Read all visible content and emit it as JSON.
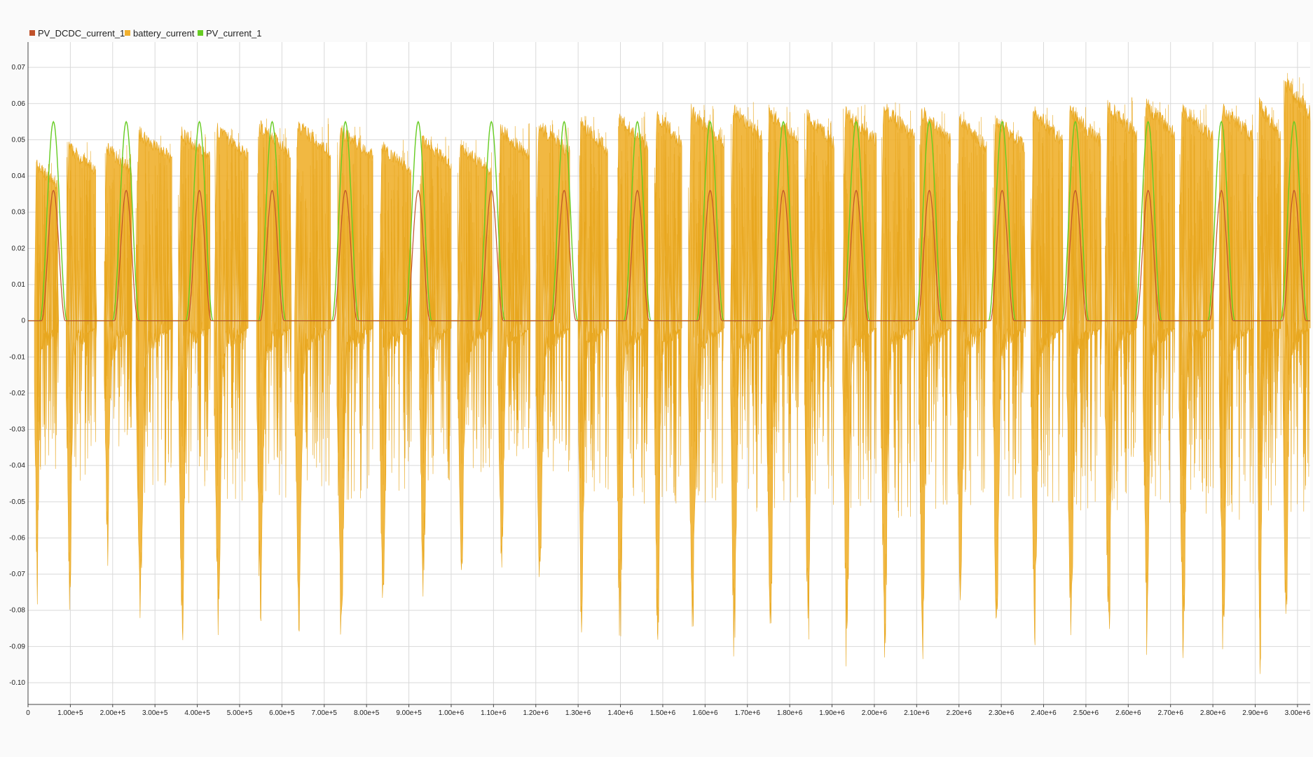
{
  "colors": {
    "background": "#fafafa",
    "plot_background": "#ffffff",
    "grid": "#d9d9d9",
    "axis": "#444444"
  },
  "chart_data": {
    "type": "line",
    "title": "",
    "xlabel": "",
    "ylabel": "",
    "grid": true,
    "legend_position": "top-left",
    "xlim": [
      0,
      3030000
    ],
    "ylim": [
      -0.106,
      0.077
    ],
    "x_ticks": [
      0,
      100000,
      200000,
      300000,
      400000,
      500000,
      600000,
      700000,
      800000,
      900000,
      1000000,
      1100000,
      1200000,
      1300000,
      1400000,
      1500000,
      1600000,
      1700000,
      1800000,
      1900000,
      2000000,
      2100000,
      2200000,
      2300000,
      2400000,
      2500000,
      2600000,
      2700000,
      2800000,
      2900000,
      3000000
    ],
    "x_tick_labels": [
      "0",
      "1.00e+5",
      "2.00e+5",
      "3.00e+5",
      "4.00e+5",
      "5.00e+5",
      "6.00e+5",
      "7.00e+5",
      "8.00e+5",
      "9.00e+5",
      "1.00e+6",
      "1.10e+6",
      "1.20e+6",
      "1.30e+6",
      "1.40e+6",
      "1.50e+6",
      "1.60e+6",
      "1.70e+6",
      "1.80e+6",
      "1.90e+6",
      "2.00e+6",
      "2.10e+6",
      "2.20e+6",
      "2.30e+6",
      "2.40e+6",
      "2.50e+6",
      "2.60e+6",
      "2.70e+6",
      "2.80e+6",
      "2.90e+6",
      "3.00e+6"
    ],
    "y_ticks": [
      0.07,
      0.06,
      0.05,
      0.04,
      0.03,
      0.02,
      0.01,
      0,
      -0.01,
      -0.02,
      -0.03,
      -0.04,
      -0.05,
      -0.06,
      -0.07,
      -0.08,
      -0.09,
      -0.1
    ],
    "y_tick_labels": [
      "0.07",
      "0.06",
      "0.05",
      "0.04",
      "0.03",
      "0.02",
      "0.01",
      "0",
      "-0.01",
      "-0.02",
      "-0.03",
      "-0.04",
      "-0.05",
      "-0.06",
      "-0.07",
      "-0.08",
      "-0.09",
      "-0.10"
    ],
    "series": [
      {
        "name": "PV_DCDC_current_1",
        "color": "#c0522b",
        "style": "daily bell curves, peak ~0.036, otherwise ~0",
        "day_starts": [
          0,
          172000,
          345000,
          517000,
          690000,
          862000,
          1035000,
          1207000,
          1380000,
          1552000,
          1725000,
          1897000,
          2070000,
          2242000,
          2415000,
          2587000,
          2760000,
          2932000
        ],
        "peak": 0.036
      },
      {
        "name": "battery_current",
        "color": "#f0b02e",
        "style": "oscillating envelope per half-day cycle",
        "cycles": [
          {
            "x0": 15000,
            "x1": 70000,
            "hi": 0.045,
            "lo": -0.069
          },
          {
            "x0": 90000,
            "x1": 160000,
            "hi": 0.05,
            "lo": -0.075
          },
          {
            "x0": 180000,
            "x1": 245000,
            "hi": 0.05,
            "lo": -0.06
          },
          {
            "x0": 255000,
            "x1": 340000,
            "hi": 0.054,
            "lo": -0.082
          },
          {
            "x0": 355000,
            "x1": 430000,
            "hi": 0.054,
            "lo": -0.085
          },
          {
            "x0": 440000,
            "x1": 520000,
            "hi": 0.055,
            "lo": -0.084
          },
          {
            "x0": 540000,
            "x1": 620000,
            "hi": 0.056,
            "lo": -0.082
          },
          {
            "x0": 630000,
            "x1": 715000,
            "hi": 0.056,
            "lo": -0.078
          },
          {
            "x0": 730000,
            "x1": 815000,
            "hi": 0.055,
            "lo": -0.086
          },
          {
            "x0": 830000,
            "x1": 905000,
            "hi": 0.05,
            "lo": -0.08
          },
          {
            "x0": 925000,
            "x1": 1000000,
            "hi": 0.052,
            "lo": -0.075
          },
          {
            "x0": 1015000,
            "x1": 1095000,
            "hi": 0.05,
            "lo": -0.07
          },
          {
            "x0": 1110000,
            "x1": 1185000,
            "hi": 0.055,
            "lo": -0.068
          },
          {
            "x0": 1200000,
            "x1": 1280000,
            "hi": 0.056,
            "lo": -0.072
          },
          {
            "x0": 1300000,
            "x1": 1370000,
            "hi": 0.057,
            "lo": -0.088
          },
          {
            "x0": 1390000,
            "x1": 1465000,
            "hi": 0.058,
            "lo": -0.086
          },
          {
            "x0": 1480000,
            "x1": 1545000,
            "hi": 0.059,
            "lo": -0.088
          },
          {
            "x0": 1560000,
            "x1": 1645000,
            "hi": 0.06,
            "lo": -0.087
          },
          {
            "x0": 1660000,
            "x1": 1735000,
            "hi": 0.061,
            "lo": -0.089
          },
          {
            "x0": 1745000,
            "x1": 1820000,
            "hi": 0.06,
            "lo": -0.091
          },
          {
            "x0": 1835000,
            "x1": 1905000,
            "hi": 0.059,
            "lo": -0.088
          },
          {
            "x0": 1925000,
            "x1": 2005000,
            "hi": 0.06,
            "lo": -0.091
          },
          {
            "x0": 2015000,
            "x1": 2095000,
            "hi": 0.061,
            "lo": -0.093
          },
          {
            "x0": 2105000,
            "x1": 2180000,
            "hi": 0.06,
            "lo": -0.09
          },
          {
            "x0": 2195000,
            "x1": 2265000,
            "hi": 0.058,
            "lo": -0.087
          },
          {
            "x0": 2280000,
            "x1": 2355000,
            "hi": 0.058,
            "lo": -0.085
          },
          {
            "x0": 2370000,
            "x1": 2445000,
            "hi": 0.06,
            "lo": -0.085
          },
          {
            "x0": 2455000,
            "x1": 2535000,
            "hi": 0.06,
            "lo": -0.088
          },
          {
            "x0": 2545000,
            "x1": 2620000,
            "hi": 0.062,
            "lo": -0.09
          },
          {
            "x0": 2635000,
            "x1": 2710000,
            "hi": 0.062,
            "lo": -0.087
          },
          {
            "x0": 2720000,
            "x1": 2800000,
            "hi": 0.061,
            "lo": -0.093
          },
          {
            "x0": 2815000,
            "x1": 2895000,
            "hi": 0.061,
            "lo": -0.092
          },
          {
            "x0": 2905000,
            "x1": 2960000,
            "hi": 0.062,
            "lo": -0.098
          },
          {
            "x0": 2965000,
            "x1": 3030000,
            "hi": 0.069,
            "lo": -0.09
          }
        ]
      },
      {
        "name": "PV_current_1",
        "color": "#66cc22",
        "style": "daily bell curves, peak ~0.055, otherwise ~0",
        "day_starts": [
          0,
          172000,
          345000,
          517000,
          690000,
          862000,
          1035000,
          1207000,
          1380000,
          1552000,
          1725000,
          1897000,
          2070000,
          2242000,
          2415000,
          2587000,
          2760000,
          2932000
        ],
        "peak": 0.055
      }
    ]
  }
}
